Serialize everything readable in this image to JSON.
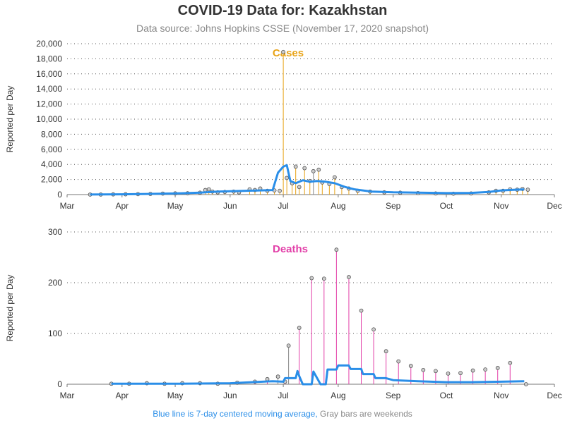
{
  "title": "COVID-19 Data for: Kazakhstan",
  "subtitle": "Data source: Johns Hopkins CSSE (November 17, 2020 snapshot)",
  "footnote": {
    "part1": "Blue line is 7-day centered moving average,",
    "part2": "Gray bars are weekends"
  },
  "colors": {
    "cases": "#e8a317",
    "deaths": "#e23fa8",
    "avg": "#2a8ee8",
    "weekend": "#888888",
    "grid": "#555555",
    "marker_fill": "#cccccc"
  },
  "chart_data": [
    {
      "type": "bar",
      "title": "Cases",
      "ylabel": "Reported per Day",
      "ylim": [
        0,
        20000
      ],
      "yticks": [
        0,
        2000,
        4000,
        6000,
        8000,
        10000,
        12000,
        14000,
        16000,
        18000,
        20000
      ],
      "ytick_labels": [
        "0",
        "2,000",
        "4,000",
        "6,000",
        "8,000",
        "10,000",
        "12,000",
        "14,000",
        "16,000",
        "18,000",
        "20,000"
      ],
      "xlim": [
        "2020-03-01",
        "2020-12-01"
      ],
      "xtick_labels": [
        "Mar",
        "Apr",
        "May",
        "Jun",
        "Jul",
        "Aug",
        "Sep",
        "Oct",
        "Nov",
        "Dec"
      ],
      "grid": "horizontal dotted",
      "series": [
        {
          "name": "Reported per Day",
          "points": [
            [
              "2020-03-14",
              2
            ],
            [
              "2020-03-20",
              10
            ],
            [
              "2020-03-27",
              30
            ],
            [
              "2020-04-03",
              40
            ],
            [
              "2020-04-10",
              60
            ],
            [
              "2020-04-17",
              90
            ],
            [
              "2020-04-24",
              130
            ],
            [
              "2020-05-01",
              160
            ],
            [
              "2020-05-08",
              170
            ],
            [
              "2020-05-15",
              250
            ],
            [
              "2020-05-18",
              600
            ],
            [
              "2020-05-20",
              700
            ],
            [
              "2020-05-22",
              400
            ],
            [
              "2020-05-25",
              300
            ],
            [
              "2020-05-29",
              350
            ],
            [
              "2020-06-03",
              400
            ],
            [
              "2020-06-06",
              300
            ],
            [
              "2020-06-12",
              700
            ],
            [
              "2020-06-15",
              600
            ],
            [
              "2020-06-18",
              800
            ],
            [
              "2020-06-22",
              500
            ],
            [
              "2020-06-26",
              550
            ],
            [
              "2020-06-29",
              500
            ],
            [
              "2020-07-01",
              18900
            ],
            [
              "2020-07-03",
              2200
            ],
            [
              "2020-07-06",
              1500
            ],
            [
              "2020-07-08",
              3700
            ],
            [
              "2020-07-10",
              1000
            ],
            [
              "2020-07-13",
              3500
            ],
            [
              "2020-07-16",
              1800
            ],
            [
              "2020-07-18",
              3100
            ],
            [
              "2020-07-21",
              3300
            ],
            [
              "2020-07-23",
              1600
            ],
            [
              "2020-07-27",
              1400
            ],
            [
              "2020-07-30",
              2300
            ],
            [
              "2020-08-03",
              1000
            ],
            [
              "2020-08-07",
              800
            ],
            [
              "2020-08-12",
              500
            ],
            [
              "2020-08-19",
              400
            ],
            [
              "2020-08-27",
              300
            ],
            [
              "2020-09-05",
              250
            ],
            [
              "2020-09-15",
              200
            ],
            [
              "2020-09-25",
              150
            ],
            [
              "2020-10-05",
              120
            ],
            [
              "2020-10-15",
              150
            ],
            [
              "2020-10-25",
              300
            ],
            [
              "2020-10-29",
              500
            ],
            [
              "2020-11-02",
              500
            ],
            [
              "2020-11-06",
              700
            ],
            [
              "2020-11-10",
              650
            ],
            [
              "2020-11-13",
              750
            ],
            [
              "2020-11-16",
              650
            ]
          ]
        },
        {
          "name": "7-day centered moving average",
          "points": [
            [
              "2020-03-14",
              5
            ],
            [
              "2020-04-01",
              40
            ],
            [
              "2020-04-15",
              80
            ],
            [
              "2020-05-01",
              150
            ],
            [
              "2020-05-15",
              250
            ],
            [
              "2020-05-25",
              400
            ],
            [
              "2020-06-10",
              500
            ],
            [
              "2020-06-25",
              600
            ],
            [
              "2020-06-28",
              2900
            ],
            [
              "2020-07-01",
              3700
            ],
            [
              "2020-07-03",
              3900
            ],
            [
              "2020-07-05",
              1800
            ],
            [
              "2020-07-08",
              1500
            ],
            [
              "2020-07-12",
              1900
            ],
            [
              "2020-07-16",
              1700
            ],
            [
              "2020-07-20",
              1800
            ],
            [
              "2020-07-25",
              1700
            ],
            [
              "2020-07-30",
              1500
            ],
            [
              "2020-08-05",
              1000
            ],
            [
              "2020-08-10",
              700
            ],
            [
              "2020-08-20",
              400
            ],
            [
              "2020-09-01",
              300
            ],
            [
              "2020-09-15",
              250
            ],
            [
              "2020-10-01",
              200
            ],
            [
              "2020-10-15",
              220
            ],
            [
              "2020-10-25",
              350
            ],
            [
              "2020-11-01",
              550
            ],
            [
              "2020-11-10",
              650
            ],
            [
              "2020-11-14",
              680
            ]
          ]
        }
      ]
    },
    {
      "type": "bar",
      "title": "Deaths",
      "ylabel": "Reported per Day",
      "ylim": [
        0,
        300
      ],
      "yticks": [
        0,
        100,
        200,
        300
      ],
      "ytick_labels": [
        "0",
        "100",
        "200",
        "300"
      ],
      "xlim": [
        "2020-03-01",
        "2020-12-01"
      ],
      "xtick_labels": [
        "Mar",
        "Apr",
        "May",
        "Jun",
        "Jul",
        "Aug",
        "Sep",
        "Oct",
        "Nov",
        "Dec"
      ],
      "grid": "horizontal dotted",
      "series": [
        {
          "name": "Reported per Day",
          "points": [
            [
              "2020-03-26",
              1
            ],
            [
              "2020-04-05",
              1
            ],
            [
              "2020-04-15",
              2
            ],
            [
              "2020-04-25",
              1
            ],
            [
              "2020-05-05",
              2
            ],
            [
              "2020-05-15",
              2
            ],
            [
              "2020-05-25",
              1
            ],
            [
              "2020-06-05",
              3
            ],
            [
              "2020-06-15",
              5
            ],
            [
              "2020-06-22",
              10
            ],
            [
              "2020-06-28",
              15
            ],
            [
              "2020-07-02",
              5
            ],
            [
              "2020-07-04",
              76
            ],
            [
              "2020-07-10",
              111
            ],
            [
              "2020-07-17",
              209
            ],
            [
              "2020-07-24",
              208
            ],
            [
              "2020-07-31",
              265
            ],
            [
              "2020-08-07",
              211
            ],
            [
              "2020-08-14",
              145
            ],
            [
              "2020-08-21",
              108
            ],
            [
              "2020-08-28",
              65
            ],
            [
              "2020-09-04",
              45
            ],
            [
              "2020-09-11",
              36
            ],
            [
              "2020-09-18",
              28
            ],
            [
              "2020-09-25",
              26
            ],
            [
              "2020-10-02",
              21
            ],
            [
              "2020-10-09",
              22
            ],
            [
              "2020-10-16",
              27
            ],
            [
              "2020-10-23",
              29
            ],
            [
              "2020-10-30",
              32
            ],
            [
              "2020-11-06",
              42
            ],
            [
              "2020-11-15",
              0
            ]
          ]
        },
        {
          "name": "7-day centered moving average",
          "points": [
            [
              "2020-03-26",
              1
            ],
            [
              "2020-05-01",
              1
            ],
            [
              "2020-06-01",
              2
            ],
            [
              "2020-06-25",
              6
            ],
            [
              "2020-07-01",
              5
            ],
            [
              "2020-07-02",
              12
            ],
            [
              "2020-07-08",
              12
            ],
            [
              "2020-07-09",
              26
            ],
            [
              "2020-07-10",
              16
            ],
            [
              "2020-07-12",
              0
            ],
            [
              "2020-07-17",
              0
            ],
            [
              "2020-07-18",
              25
            ],
            [
              "2020-07-22",
              0
            ],
            [
              "2020-07-25",
              0
            ],
            [
              "2020-07-26",
              29
            ],
            [
              "2020-07-31",
              29
            ],
            [
              "2020-08-01",
              37
            ],
            [
              "2020-08-07",
              37
            ],
            [
              "2020-08-08",
              30
            ],
            [
              "2020-08-14",
              30
            ],
            [
              "2020-08-15",
              20
            ],
            [
              "2020-08-21",
              20
            ],
            [
              "2020-08-22",
              12
            ],
            [
              "2020-08-28",
              12
            ],
            [
              "2020-09-01",
              8
            ],
            [
              "2020-09-15",
              6
            ],
            [
              "2020-10-01",
              4
            ],
            [
              "2020-10-15",
              4
            ],
            [
              "2020-11-01",
              5
            ],
            [
              "2020-11-14",
              6
            ]
          ]
        }
      ]
    }
  ]
}
